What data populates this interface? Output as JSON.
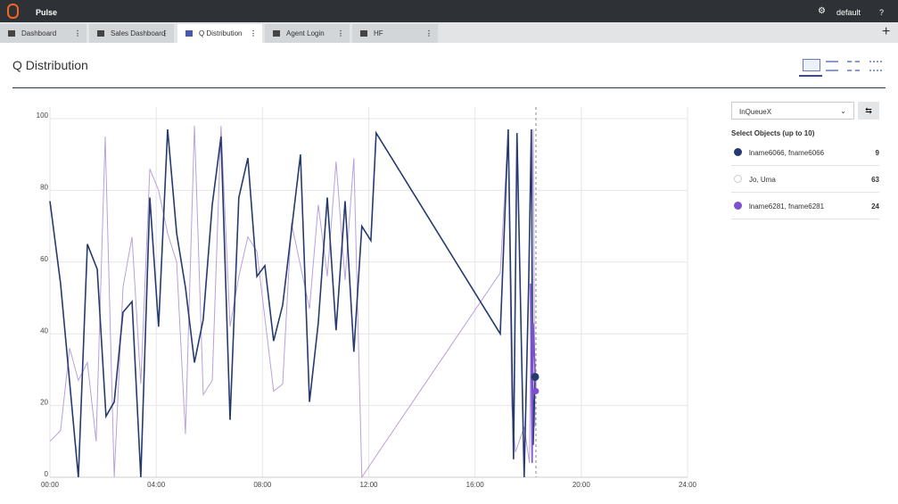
{
  "app_bar": {
    "title": "Pulse",
    "user": "default",
    "help": "?"
  },
  "tabs": [
    "Dashboard",
    "Sales Dashboard",
    "Q Distribution",
    "Agent Login",
    "HF"
  ],
  "page_title": "Q Distribution",
  "panel": {
    "metric": "InQueueX",
    "select_label": "Select Objects (up to 10)",
    "counts": [
      9,
      63,
      24
    ]
  },
  "chart_data": {
    "type": "line",
    "xlim": [
      0,
      24
    ],
    "xticks": [
      {
        "value": 0,
        "label": "00:00"
      },
      {
        "value": 4,
        "label": "04:00"
      },
      {
        "value": 8,
        "label": "08:00"
      },
      {
        "value": 12,
        "label": "12:00"
      },
      {
        "value": 16,
        "label": "16:00"
      },
      {
        "value": 20,
        "label": "20:00"
      },
      {
        "value": 24,
        "label": "24:00"
      }
    ],
    "ylim": [
      0,
      100
    ],
    "yticks": [
      0,
      20,
      40,
      60,
      80,
      100
    ],
    "grid": true,
    "series": [
      {
        "name": "lname6066, fname6066",
        "color": "#253a6e",
        "x": [
          0,
          0.4,
          1.07,
          1.41,
          1.78,
          2.11,
          2.42,
          2.75,
          3.09,
          3.42,
          3.76,
          4.09,
          4.43,
          4.77,
          5.1,
          5.44,
          5.77,
          6.11,
          6.44,
          6.78,
          7.11,
          7.45,
          7.79,
          8.09,
          8.42,
          8.76,
          9.43,
          9.77,
          10.1,
          10.44,
          10.77,
          11.11,
          11.44,
          11.74,
          12.08,
          12.28,
          16.95,
          17.25,
          17.45,
          17.58,
          17.85,
          18.02,
          18.12,
          18.19,
          18.26
        ],
        "values": [
          77,
          54,
          0,
          65,
          58,
          17,
          21,
          46,
          49,
          0,
          78,
          42,
          97,
          68,
          53,
          32,
          44,
          76,
          95,
          16,
          78,
          89,
          56,
          59,
          38,
          48,
          90,
          21,
          43,
          78,
          41,
          77,
          35,
          70,
          66,
          96,
          40,
          97,
          5,
          96,
          0,
          54,
          97,
          9,
          28
        ]
      },
      {
        "name": "Jo, Uma",
        "color": "#b9a0dc",
        "x": [
          0,
          0.4,
          0.74,
          1.07,
          1.41,
          1.74,
          2.08,
          2.42,
          2.75,
          3.09,
          3.42,
          3.76,
          4.09,
          4.43,
          4.77,
          5.1,
          5.44,
          5.77,
          6.11,
          6.44,
          6.78,
          7.11,
          7.45,
          7.79,
          8.42,
          8.76,
          9.09,
          9.77,
          10.1,
          10.44,
          10.77,
          11.11,
          11.44,
          11.74,
          12.28,
          16.95,
          17.25,
          17.38,
          17.52,
          17.85,
          18.05,
          18.19,
          18.26
        ],
        "values": [
          10,
          13,
          36,
          27,
          32,
          10,
          95,
          0,
          53,
          67,
          26,
          86,
          80,
          68,
          60,
          12,
          98,
          23,
          27,
          98,
          42,
          56,
          67,
          63,
          24,
          26,
          71,
          47,
          76,
          56,
          88,
          55,
          89,
          0,
          6,
          57,
          97,
          20,
          7,
          14,
          4,
          97,
          14
        ]
      },
      {
        "name": "lname6281, fname6281",
        "color": "#7e4fd1",
        "x": [
          18.09,
          18.15,
          18.19,
          18.29
        ],
        "values": [
          54,
          4,
          43,
          24
        ]
      }
    ]
  }
}
